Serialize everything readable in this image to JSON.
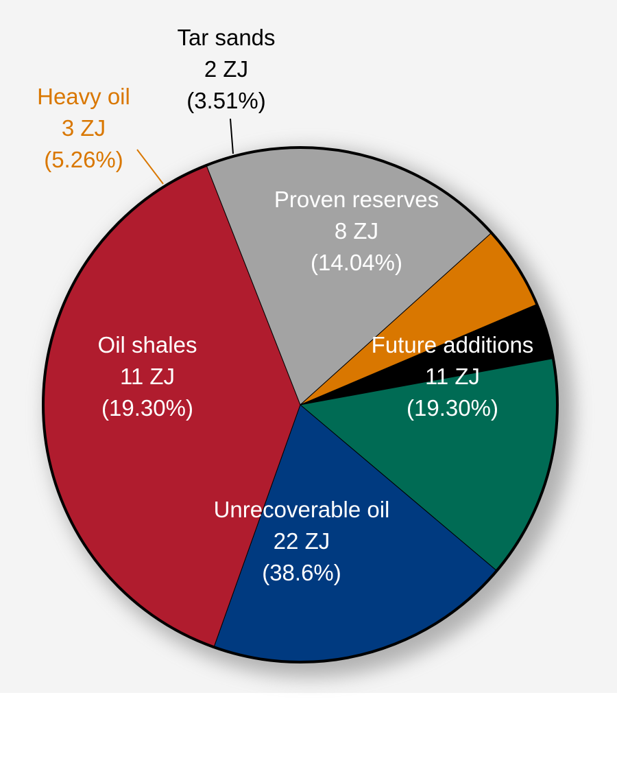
{
  "chart_data": {
    "type": "pie",
    "unit": "ZJ",
    "start_angle_deg": -23,
    "direction": "clockwise",
    "slices": [
      {
        "label": "Tar sands",
        "value": 2,
        "value_text": "2 ZJ",
        "percent": 3.51,
        "percent_text": "(3.51%)",
        "color": "#000000",
        "text_color": "#000000",
        "label_placement": "outside"
      },
      {
        "label": "Proven reserves",
        "value": 8,
        "value_text": "8 ZJ",
        "percent": 14.04,
        "percent_text": "(14.04%)",
        "color": "#006b54",
        "text_color": "#ffffff",
        "label_placement": "inside"
      },
      {
        "label": "Future additions",
        "value": 11,
        "value_text": "11 ZJ",
        "percent": 19.3,
        "percent_text": "(19.30%)",
        "color": "#003a80",
        "text_color": "#ffffff",
        "label_placement": "inside"
      },
      {
        "label": "Unrecoverable oil",
        "value": 22,
        "value_text": "22 ZJ",
        "percent": 38.6,
        "percent_text": "(38.6%)",
        "color": "#b01c2e",
        "text_color": "#ffffff",
        "label_placement": "inside"
      },
      {
        "label": "Oil shales",
        "value": 11,
        "value_text": "11 ZJ",
        "percent": 19.3,
        "percent_text": "(19.30%)",
        "color": "#a3a3a3",
        "text_color": "#ffffff",
        "label_placement": "inside"
      },
      {
        "label": "Heavy oil",
        "value": 3,
        "value_text": "3 ZJ",
        "percent": 5.26,
        "percent_text": "(5.26%)",
        "color": "#d97700",
        "text_color": "#d97700",
        "label_placement": "outside"
      }
    ]
  }
}
